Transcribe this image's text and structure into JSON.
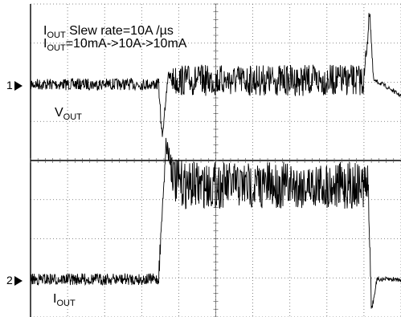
{
  "chart_data": {
    "type": "line",
    "description_source": "oscilloscope load-transient capture",
    "annotation": {
      "line1_main": "I",
      "line1_sub": "OUT",
      "line1_rest": " Slew rate=10A /µs",
      "line2_main": "I",
      "line2_sub": "OUT",
      "line2_rest": "=10mA->10A->10mA"
    },
    "series": [
      {
        "marker": "1",
        "label_main": "V",
        "label_sub": "OUT",
        "x_div": [
          0,
          3.45,
          3.55,
          3.7,
          3.9,
          9.0,
          9.15,
          9.25,
          9.5,
          10.0,
          11.5
        ],
        "y_div": [
          0,
          0,
          -1.4,
          0.2,
          0.1,
          0.1,
          1.9,
          0.1,
          0.0,
          -0.3,
          0
        ],
        "ripple_div": [
          0.15,
          0.15,
          0.1,
          0.1,
          0.4,
          0.4,
          0.1,
          0.05,
          0.05,
          0.05,
          0.15
        ]
      },
      {
        "marker": "2",
        "label_main": "I",
        "label_sub": "OUT",
        "x_div": [
          0,
          3.45,
          3.65,
          3.9,
          4.2,
          9.1,
          9.15,
          9.2,
          9.35,
          11.5
        ],
        "y_div": [
          0,
          0,
          3.5,
          2.5,
          2.4,
          2.4,
          1.0,
          -0.8,
          0,
          0
        ],
        "ripple_div": [
          0.15,
          0.15,
          0.3,
          0.6,
          0.6,
          0.6,
          0.1,
          0.05,
          0.05,
          0.1
        ]
      }
    ],
    "grid": true,
    "divisions_x": 10,
    "divisions_y": 8
  }
}
